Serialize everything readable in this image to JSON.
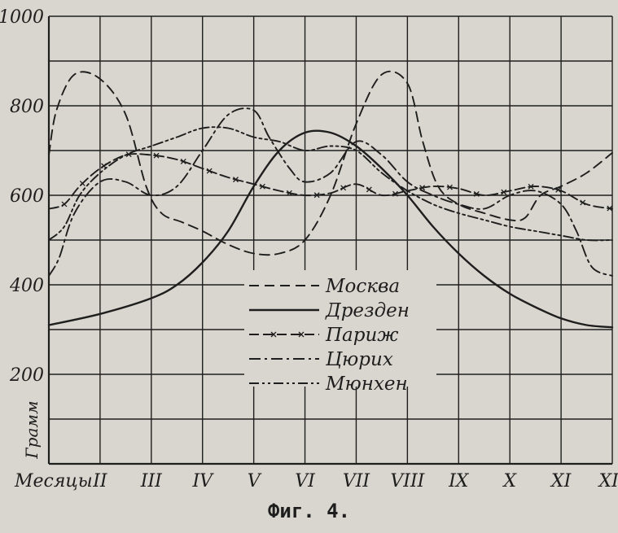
{
  "caption": "Фиг. 4.",
  "chart_data": {
    "type": "line",
    "title": "",
    "xlabel": "Месяцы",
    "ylabel": "Грамм",
    "x_ticks": [
      "II",
      "III",
      "IV",
      "V",
      "VI",
      "VII",
      "VIII",
      "IX",
      "X",
      "XI",
      "XII"
    ],
    "x_range": [
      1,
      12
    ],
    "ylim": [
      0,
      1000
    ],
    "y_ticks": [
      200,
      400,
      600,
      800,
      1000
    ],
    "grid": true,
    "legend_position": "center",
    "series": [
      {
        "name": "Москва",
        "style": "dashed",
        "points": [
          [
            1.0,
            690
          ],
          [
            1.15,
            790
          ],
          [
            1.5,
            870
          ],
          [
            2.0,
            860
          ],
          [
            2.5,
            780
          ],
          [
            2.9,
            620
          ],
          [
            3.2,
            560
          ],
          [
            3.6,
            540
          ],
          [
            4.0,
            520
          ],
          [
            4.5,
            490
          ],
          [
            5.0,
            470
          ],
          [
            5.5,
            470
          ],
          [
            6.0,
            500
          ],
          [
            6.5,
            600
          ],
          [
            7.0,
            760
          ],
          [
            7.5,
            870
          ],
          [
            8.0,
            850
          ],
          [
            8.3,
            720
          ],
          [
            8.6,
            620
          ],
          [
            9.0,
            580
          ],
          [
            9.5,
            560
          ],
          [
            10.0,
            545
          ],
          [
            10.3,
            550
          ],
          [
            10.6,
            600
          ],
          [
            11.0,
            620
          ],
          [
            11.5,
            650
          ],
          [
            12.0,
            695
          ]
        ]
      },
      {
        "name": "Дрезден",
        "style": "solid",
        "points": [
          [
            1.0,
            310
          ],
          [
            2.0,
            335
          ],
          [
            3.0,
            370
          ],
          [
            3.5,
            400
          ],
          [
            4.0,
            450
          ],
          [
            4.5,
            520
          ],
          [
            5.0,
            620
          ],
          [
            5.5,
            700
          ],
          [
            6.0,
            740
          ],
          [
            6.5,
            740
          ],
          [
            7.0,
            710
          ],
          [
            7.5,
            660
          ],
          [
            8.0,
            600
          ],
          [
            8.5,
            530
          ],
          [
            9.0,
            470
          ],
          [
            9.5,
            420
          ],
          [
            10.0,
            380
          ],
          [
            10.5,
            350
          ],
          [
            11.0,
            325
          ],
          [
            11.5,
            310
          ],
          [
            12.0,
            305
          ]
        ]
      },
      {
        "name": "Париж",
        "style": "dash-cross",
        "points": [
          [
            1.0,
            570
          ],
          [
            1.3,
            580
          ],
          [
            1.6,
            620
          ],
          [
            2.0,
            660
          ],
          [
            2.5,
            690
          ],
          [
            3.0,
            690
          ],
          [
            3.5,
            680
          ],
          [
            4.0,
            660
          ],
          [
            4.5,
            640
          ],
          [
            5.0,
            625
          ],
          [
            5.5,
            610
          ],
          [
            6.0,
            600
          ],
          [
            6.5,
            605
          ],
          [
            7.0,
            625
          ],
          [
            7.5,
            600
          ],
          [
            8.0,
            610
          ],
          [
            8.5,
            620
          ],
          [
            9.0,
            615
          ],
          [
            9.5,
            600
          ],
          [
            10.0,
            610
          ],
          [
            10.5,
            620
          ],
          [
            11.0,
            610
          ],
          [
            11.5,
            580
          ],
          [
            12.0,
            570
          ]
        ]
      },
      {
        "name": "Цюрих",
        "style": "dash-dot",
        "points": [
          [
            1.0,
            420
          ],
          [
            1.2,
            460
          ],
          [
            1.5,
            560
          ],
          [
            2.0,
            630
          ],
          [
            2.5,
            630
          ],
          [
            3.0,
            600
          ],
          [
            3.5,
            620
          ],
          [
            4.0,
            700
          ],
          [
            4.5,
            780
          ],
          [
            5.0,
            790
          ],
          [
            5.3,
            730
          ],
          [
            5.7,
            660
          ],
          [
            6.0,
            630
          ],
          [
            6.5,
            650
          ],
          [
            7.0,
            720
          ],
          [
            7.5,
            690
          ],
          [
            8.0,
            630
          ],
          [
            8.5,
            600
          ],
          [
            9.0,
            580
          ],
          [
            9.5,
            570
          ],
          [
            10.0,
            600
          ],
          [
            10.5,
            610
          ],
          [
            11.0,
            580
          ],
          [
            11.3,
            520
          ],
          [
            11.6,
            440
          ],
          [
            12.0,
            420
          ]
        ]
      },
      {
        "name": "Мюнхен",
        "style": "dash-dot-dot",
        "points": [
          [
            1.0,
            500
          ],
          [
            1.3,
            530
          ],
          [
            1.6,
            600
          ],
          [
            2.0,
            650
          ],
          [
            2.5,
            690
          ],
          [
            3.0,
            710
          ],
          [
            3.5,
            730
          ],
          [
            4.0,
            750
          ],
          [
            4.5,
            750
          ],
          [
            5.0,
            730
          ],
          [
            5.5,
            720
          ],
          [
            6.0,
            700
          ],
          [
            6.5,
            710
          ],
          [
            7.0,
            700
          ],
          [
            7.5,
            650
          ],
          [
            8.0,
            610
          ],
          [
            8.5,
            580
          ],
          [
            9.0,
            560
          ],
          [
            9.5,
            545
          ],
          [
            10.0,
            530
          ],
          [
            10.5,
            520
          ],
          [
            11.0,
            510
          ],
          [
            11.5,
            500
          ],
          [
            12.0,
            500
          ]
        ]
      }
    ]
  }
}
